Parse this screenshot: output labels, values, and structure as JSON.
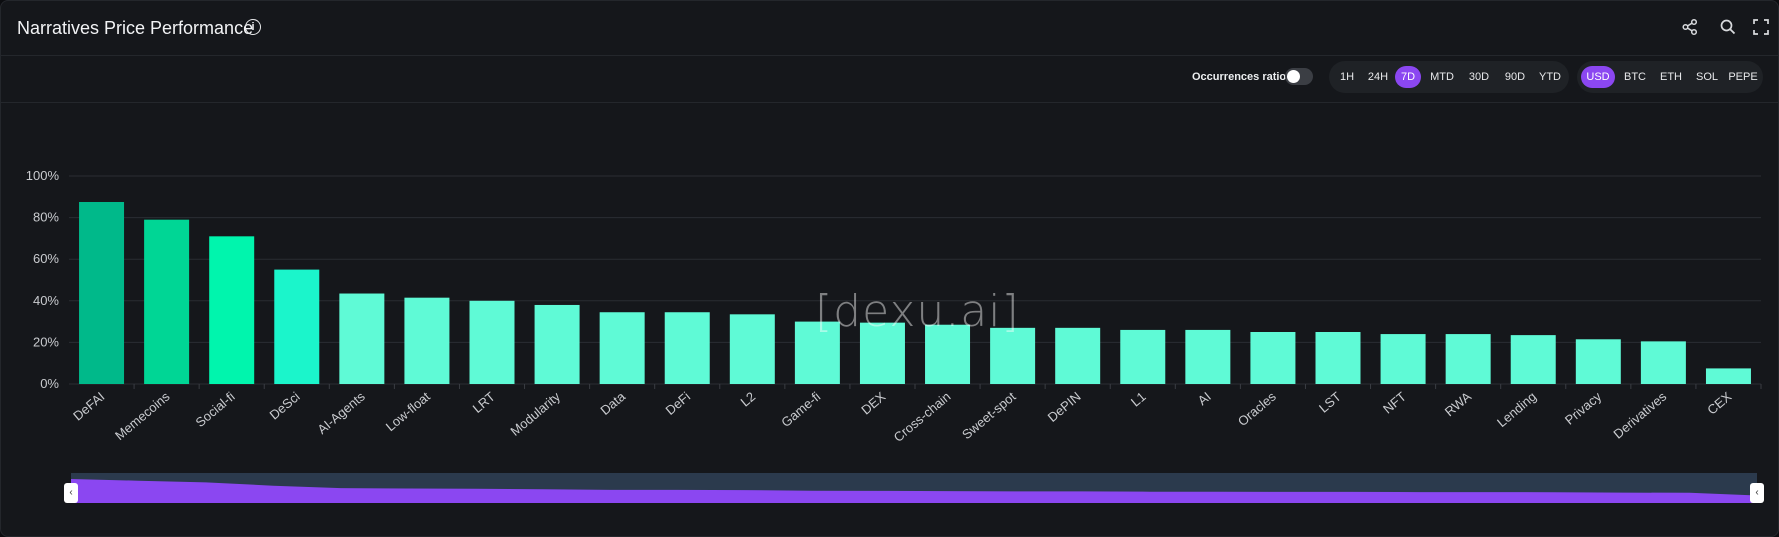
{
  "header": {
    "title": "Narratives Price Performance",
    "info_icon": "info-icon",
    "actions": [
      "share-icon",
      "search-icon",
      "fullscreen-icon"
    ]
  },
  "toolbar": {
    "occurrences_label": "Occurrences ratio",
    "occurrences_enabled": false,
    "timeframes": [
      "1H",
      "24H",
      "7D",
      "MTD",
      "30D",
      "90D",
      "YTD"
    ],
    "timeframe_selected": "7D",
    "currencies": [
      "USD",
      "BTC",
      "ETH",
      "SOL",
      "PEPE"
    ],
    "currency_selected": "USD"
  },
  "watermark": "[dexu.ai]",
  "colors": {
    "accent": "#8b47f1",
    "bar_top1": "#00b98a",
    "bar_top2": "#00d695",
    "bar_top3": "#00f5ad",
    "bar_top4": "#1bf5cb",
    "bar_default": "#5ffad6"
  },
  "chart_data": {
    "type": "bar",
    "title": "Narratives Price Performance",
    "categories": [
      "DeFAI",
      "Memecoins",
      "Social-fi",
      "DeSci",
      "AI-Agents",
      "Low-float",
      "LRT",
      "Modularity",
      "Data",
      "DeFi",
      "L2",
      "Game-fi",
      "DEX",
      "Cross-chain",
      "Sweet-spot",
      "DePIN",
      "L1",
      "AI",
      "Oracles",
      "LST",
      "NFT",
      "RWA",
      "Lending",
      "Privacy",
      "Derivatives",
      "CEX"
    ],
    "values": [
      87.5,
      79,
      71,
      55,
      43.5,
      41.5,
      40,
      38,
      34.5,
      34.5,
      33.5,
      30,
      29.5,
      28.5,
      27,
      27,
      26,
      26,
      25,
      25,
      24,
      24,
      23.5,
      21.5,
      20.5,
      7.5
    ],
    "ylim": [
      0,
      100
    ],
    "yticks": [
      "0%",
      "20%",
      "40%",
      "60%",
      "80%",
      "100%"
    ],
    "ytick_values": [
      0,
      20,
      40,
      60,
      80,
      100
    ],
    "xlabel": "",
    "ylabel": "",
    "grid": true
  }
}
